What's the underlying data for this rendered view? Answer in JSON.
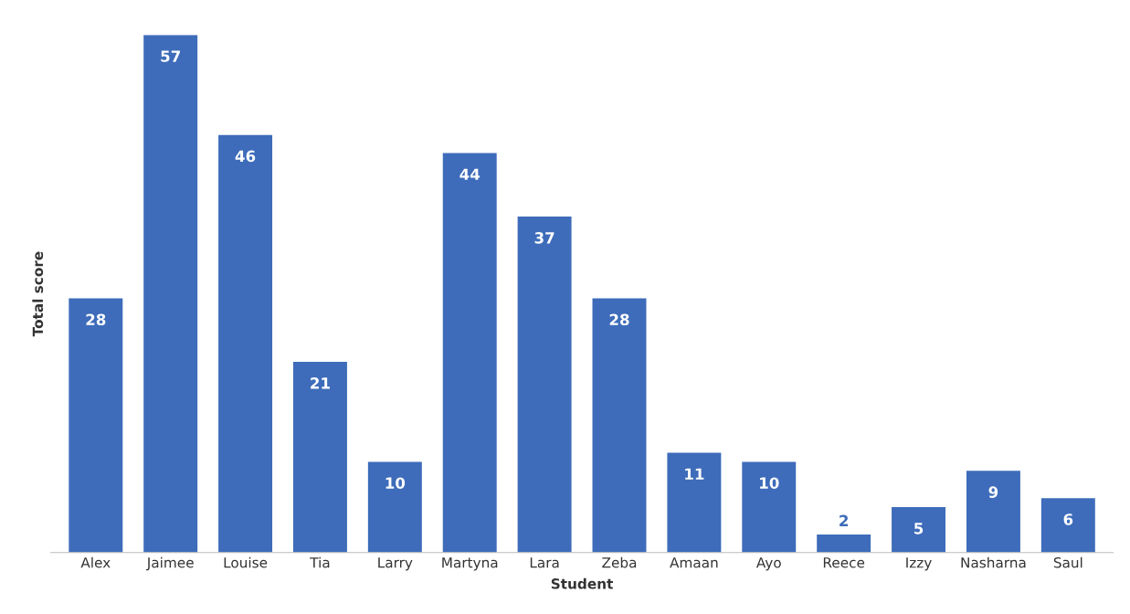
{
  "chart_data": {
    "type": "bar",
    "xlabel": "Student",
    "ylabel": "Total score",
    "categories": [
      "Alex",
      "Jaimee",
      "Louise",
      "Tia",
      "Larry",
      "Martyna",
      "Lara",
      "Zeba",
      "Amaan",
      "Ayo",
      "Reece",
      "Izzy",
      "Nasharna",
      "Saul"
    ],
    "values": [
      28,
      57,
      46,
      21,
      10,
      44,
      37,
      28,
      11,
      10,
      2,
      5,
      9,
      6
    ],
    "color": "#3e6cba",
    "data_labels": true,
    "tick_labels": "x"
  }
}
